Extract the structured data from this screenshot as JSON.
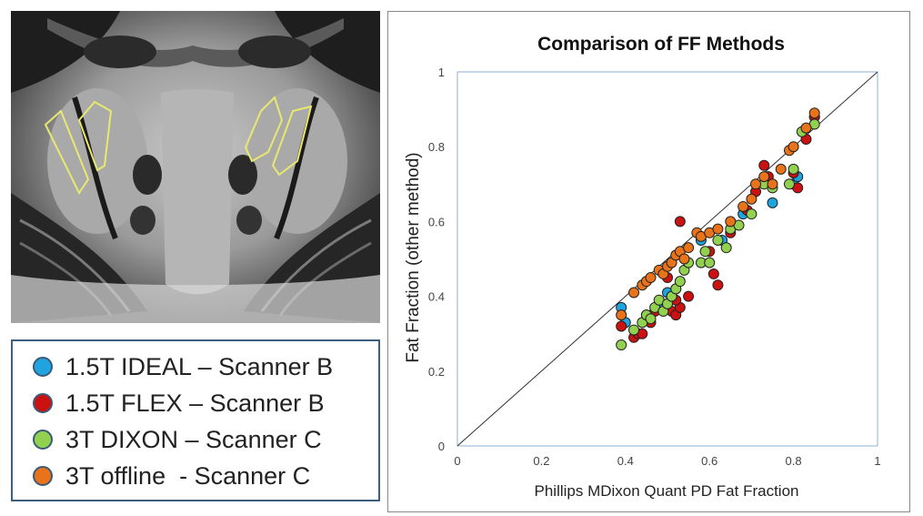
{
  "legend": {
    "items": [
      {
        "label": "1.5T IDEAL – Scanner B",
        "color": "#1fa4e0"
      },
      {
        "label": "1.5T FLEX – Scanner B",
        "color": "#cc1111"
      },
      {
        "label": "3T DIXON – Scanner C",
        "color": "#92d050"
      },
      {
        "label": "3T offline  - Scanner C",
        "color": "#e8731a"
      }
    ]
  },
  "chart_data": {
    "type": "scatter",
    "title": "Comparison of FF Methods",
    "xlabel": "Phillips MDixon Quant PD Fat Fraction",
    "ylabel": "Fat Fraction (other method)",
    "xlim": [
      0,
      1
    ],
    "ylim": [
      0,
      1
    ],
    "xticks": [
      "0",
      "0.2",
      "0.4",
      "0.6",
      "0.8",
      "1"
    ],
    "yticks": [
      "0",
      "0.2",
      "0.4",
      "0.6",
      "0.8",
      "1"
    ],
    "identity_line": true,
    "series": [
      {
        "name": "1.5T IDEAL – Scanner B",
        "color": "#1fa4e0",
        "x": [
          0.39,
          0.4,
          0.45,
          0.48,
          0.5,
          0.51,
          0.52,
          0.58,
          0.63,
          0.68,
          0.75,
          0.8,
          0.81,
          0.85
        ],
        "y": [
          0.37,
          0.33,
          0.35,
          0.38,
          0.41,
          0.4,
          0.42,
          0.55,
          0.55,
          0.62,
          0.65,
          0.7,
          0.72,
          0.88
        ]
      },
      {
        "name": "1.5T FLEX – Scanner B",
        "color": "#cc1111",
        "x": [
          0.39,
          0.42,
          0.43,
          0.44,
          0.46,
          0.47,
          0.5,
          0.51,
          0.52,
          0.53,
          0.53,
          0.55,
          0.6,
          0.61,
          0.62,
          0.65,
          0.69,
          0.71,
          0.73,
          0.74,
          0.8,
          0.81,
          0.83,
          0.85,
          0.5,
          0.52
        ],
        "y": [
          0.32,
          0.29,
          0.3,
          0.3,
          0.33,
          0.36,
          0.38,
          0.36,
          0.35,
          0.37,
          0.6,
          0.4,
          0.52,
          0.46,
          0.43,
          0.57,
          0.63,
          0.68,
          0.75,
          0.72,
          0.73,
          0.69,
          0.82,
          0.88,
          0.45,
          0.39
        ]
      },
      {
        "name": "3T DIXON – Scanner C",
        "color": "#92d050",
        "x": [
          0.39,
          0.42,
          0.44,
          0.45,
          0.46,
          0.47,
          0.48,
          0.49,
          0.5,
          0.51,
          0.52,
          0.53,
          0.54,
          0.55,
          0.58,
          0.59,
          0.6,
          0.62,
          0.64,
          0.65,
          0.67,
          0.7,
          0.73,
          0.75,
          0.79,
          0.8,
          0.82,
          0.85
        ],
        "y": [
          0.27,
          0.31,
          0.33,
          0.35,
          0.34,
          0.37,
          0.39,
          0.36,
          0.38,
          0.4,
          0.42,
          0.44,
          0.47,
          0.49,
          0.49,
          0.52,
          0.49,
          0.55,
          0.53,
          0.58,
          0.59,
          0.62,
          0.7,
          0.69,
          0.7,
          0.74,
          0.84,
          0.86
        ]
      },
      {
        "name": "3T offline  - Scanner C",
        "color": "#e8731a",
        "x": [
          0.39,
          0.42,
          0.44,
          0.45,
          0.46,
          0.48,
          0.49,
          0.5,
          0.51,
          0.52,
          0.53,
          0.54,
          0.55,
          0.57,
          0.58,
          0.6,
          0.62,
          0.65,
          0.68,
          0.7,
          0.71,
          0.73,
          0.75,
          0.77,
          0.79,
          0.8,
          0.83,
          0.85
        ],
        "y": [
          0.35,
          0.41,
          0.43,
          0.44,
          0.45,
          0.47,
          0.46,
          0.48,
          0.49,
          0.51,
          0.52,
          0.5,
          0.53,
          0.57,
          0.56,
          0.57,
          0.58,
          0.6,
          0.64,
          0.66,
          0.7,
          0.72,
          0.7,
          0.74,
          0.79,
          0.8,
          0.85,
          0.89
        ]
      }
    ]
  }
}
